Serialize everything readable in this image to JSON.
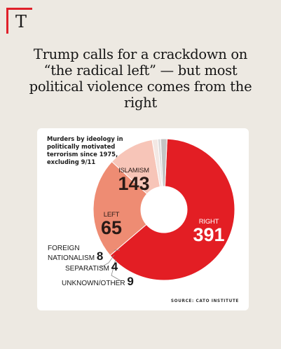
{
  "brand": {
    "letter": "T",
    "accent": "#e0202a"
  },
  "headline": "Trump calls for a crackdown on “the radical left” — but most political violence comes from the right",
  "chart_data": {
    "type": "pie",
    "style": "donut",
    "title": "Murders by ideology in politically motivated terrorism since 1975, excluding 9/11",
    "source": "SOURCE: CATO INSTITUTE",
    "categories": [
      "RIGHT",
      "ISLAMISM",
      "LEFT",
      "FOREIGN NATIONALISM",
      "SEPARATISM",
      "UNKNOWN/OTHER"
    ],
    "values": [
      391,
      143,
      65,
      8,
      4,
      9
    ],
    "colors": [
      "#e31e24",
      "#ee8c73",
      "#f7c5b8",
      "#f3e8e4",
      "#dddddd",
      "#c4c4c4"
    ],
    "label_colors": [
      "#ffffff",
      "#2a1a16",
      "#2a1a16",
      "#1a1a1a",
      "#1a1a1a",
      "#1a1a1a"
    ]
  }
}
